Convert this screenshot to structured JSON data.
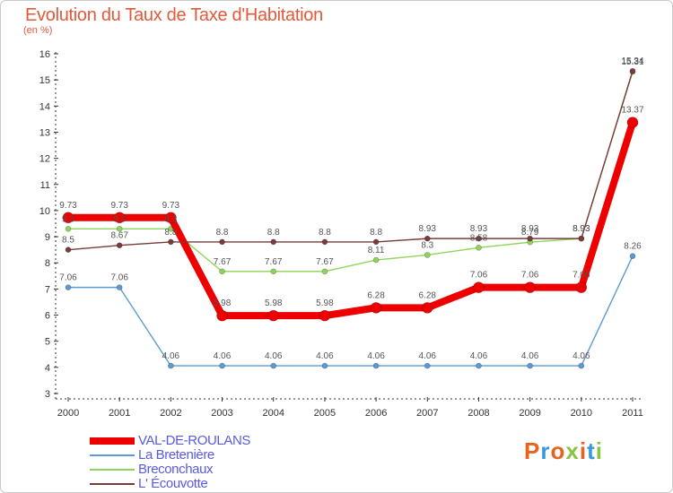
{
  "header": {
    "title": "Evolution du Taux de Taxe d'Habitation",
    "subtitle": "(en %)"
  },
  "logo": {
    "text": "Proxiti",
    "colors": [
      "#e8641e",
      "#3a9ad9",
      "#e8641e",
      "#8bc53f",
      "#e8641e",
      "#3a9ad9",
      "#8bc53f"
    ]
  },
  "chart_data": {
    "type": "line",
    "title": "Evolution du Taux de Taxe d'Habitation",
    "ylabel": "(en %)",
    "x": [
      "2000",
      "2001",
      "2002",
      "2003",
      "2004",
      "2005",
      "2006",
      "2007",
      "2008",
      "2009",
      "2010",
      "2011"
    ],
    "ylim": [
      3,
      16
    ],
    "yticks": [
      3,
      4,
      5,
      6,
      7,
      8,
      9,
      10,
      11,
      12,
      13,
      14,
      15,
      16
    ],
    "grid": false,
    "legend_position": "bottom-left",
    "series": [
      {
        "name": "VAL-DE-ROULANS",
        "color": "#ee0000",
        "values": [
          9.73,
          9.73,
          9.73,
          5.98,
          5.98,
          5.98,
          6.28,
          6.28,
          7.06,
          7.06,
          7.06,
          13.37
        ]
      },
      {
        "name": "La Bretenière",
        "color": "#5b9bd5",
        "values": [
          7.06,
          7.06,
          4.06,
          4.06,
          4.06,
          4.06,
          4.06,
          4.06,
          4.06,
          4.06,
          4.06,
          8.26
        ]
      },
      {
        "name": "Breconchaux",
        "color": "#8fd45a",
        "values": [
          9.3,
          9.3,
          9.3,
          7.67,
          7.67,
          7.67,
          8.11,
          8.3,
          8.58,
          8.79,
          8.93,
          15.31
        ]
      },
      {
        "name": "L' Écouvotte",
        "color": "#7a3b3b",
        "values": [
          8.5,
          8.67,
          8.8,
          8.8,
          8.8,
          8.8,
          8.8,
          8.93,
          8.93,
          8.93,
          8.93,
          15.34
        ]
      }
    ]
  }
}
